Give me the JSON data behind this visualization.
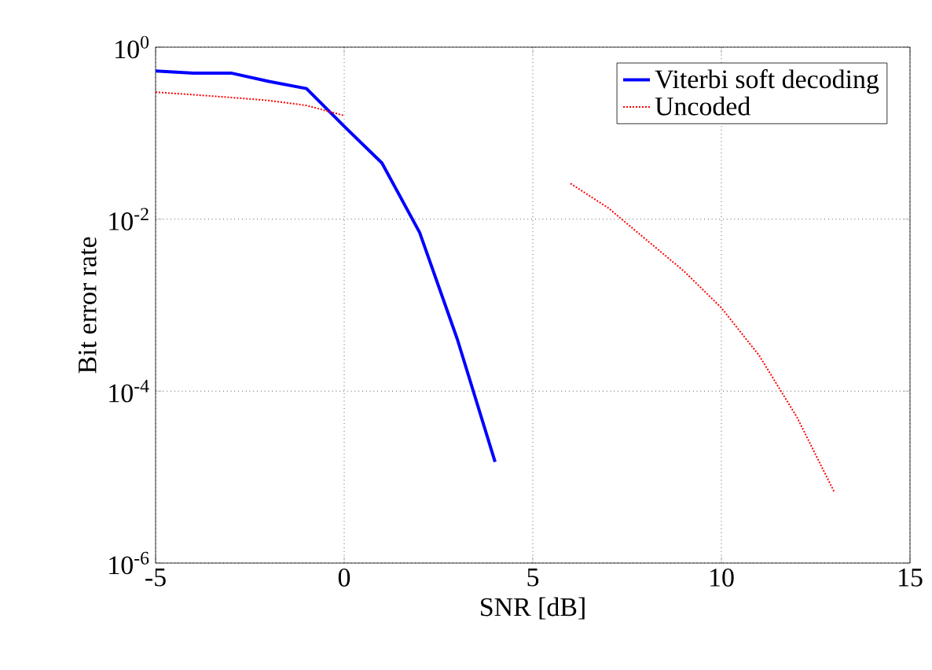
{
  "chart_data": {
    "type": "line",
    "xlabel": "SNR [dB]",
    "ylabel": "Bit error rate",
    "x": [
      -5,
      -4,
      -3,
      -2,
      -1,
      0,
      1,
      2,
      3,
      4,
      5,
      6,
      7,
      8,
      9,
      10,
      11,
      12,
      13
    ],
    "series": [
      {
        "name": "Viterbi soft decoding",
        "color": "#0000ff",
        "line_style": "solid",
        "values": [
          0.53,
          0.5,
          0.5,
          0.4,
          0.33,
          0.12,
          0.045,
          0.007,
          0.0004,
          1.5e-05,
          null,
          null,
          null,
          null,
          null,
          null,
          null,
          null,
          null
        ]
      },
      {
        "name": "Uncoded",
        "color": "#ff0000",
        "line_style": "dotted",
        "values": [
          0.3,
          0.28,
          0.26,
          0.24,
          0.21,
          0.16,
          null,
          null,
          null,
          null,
          null,
          0.026,
          0.0135,
          0.0058,
          0.0025,
          0.00093,
          0.00026,
          5e-05,
          6.6e-06
        ]
      }
    ],
    "xlim": [
      -5,
      15
    ],
    "xticks": [
      -5,
      0,
      5,
      10,
      15
    ],
    "ylim": [
      1e-06,
      1
    ],
    "log": "y",
    "yticks": [
      {
        "value": 1e-06,
        "label": "10$^{-6}$"
      },
      {
        "value": 0.0001,
        "label": "10$^{-4}$"
      },
      {
        "value": 0.01,
        "label": "10$^{-2}$"
      },
      {
        "value": 1,
        "label": "10$^{0}$"
      }
    ],
    "grid": true,
    "legend": "top right",
    "marker": "none"
  }
}
